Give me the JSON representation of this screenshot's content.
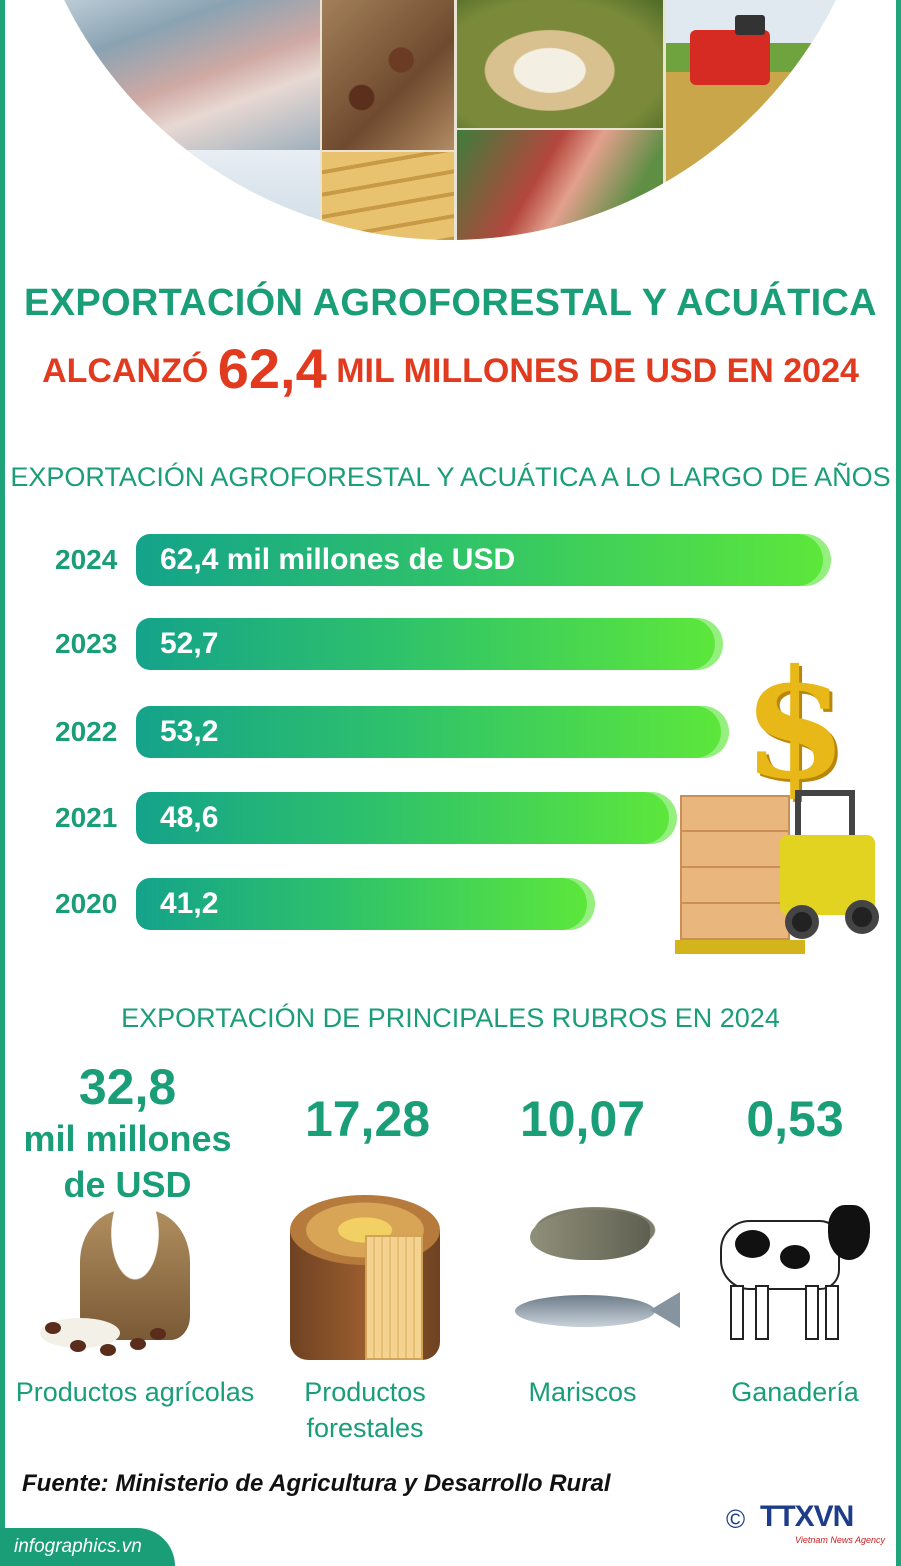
{
  "header": {
    "title_line1": "EXPORTACIÓN AGROFORESTAL Y ACUÁTICA",
    "title_line2_prefix": "ALCANZÓ",
    "title_line2_value": "62,4",
    "title_line2_suffix": "MIL MILLONES DE USD EN 2024"
  },
  "section_years": {
    "title": "EXPORTACIÓN AGROFORESTAL Y ACUÁTICA A LO LARGO DE AÑOS"
  },
  "chart_data": {
    "type": "bar",
    "orientation": "horizontal",
    "categories": [
      "2024",
      "2023",
      "2022",
      "2021",
      "2020"
    ],
    "values": [
      62.4,
      52.7,
      53.2,
      48.6,
      41.2
    ],
    "labels": [
      "62,4 mil millones de USD",
      "52,7",
      "53,2",
      "48,6",
      "41,2"
    ],
    "title": "EXPORTACIÓN AGROFORESTAL Y ACUÁTICA A LO LARGO DE AÑOS",
    "grid": false,
    "colors": [
      "#14a38a",
      "#5ee83a"
    ]
  },
  "section_products": {
    "title": "EXPORTACIÓN DE PRINCIPALES RUBROS EN 2024",
    "items": [
      {
        "value": "32,8",
        "unit_line1": "mil millones",
        "unit_line2": "de USD",
        "name": "Productos agrícolas"
      },
      {
        "value": "17,28",
        "name_line1": "Productos",
        "name_line2": "forestales"
      },
      {
        "value": "10,07",
        "name": "Mariscos"
      },
      {
        "value": "0,53",
        "name": "Ganadería"
      }
    ]
  },
  "footer": {
    "source": "Fuente: Ministerio de Agricultura y Desarrollo Rural",
    "site": "infographics.vn",
    "copyright_symbol": "©",
    "agency": "TTXVN",
    "agency_sub": "Vietnam News Agency"
  },
  "colors": {
    "accent_green": "#1a9e78",
    "highlight_red": "#e23a1f",
    "agency_blue": "#1d3c8a"
  },
  "icons": [
    "dollar-icon",
    "forklift-icon",
    "rice-sack-icon",
    "wood-stump-icon",
    "shrimp-icon",
    "fish-icon",
    "cow-icon"
  ]
}
